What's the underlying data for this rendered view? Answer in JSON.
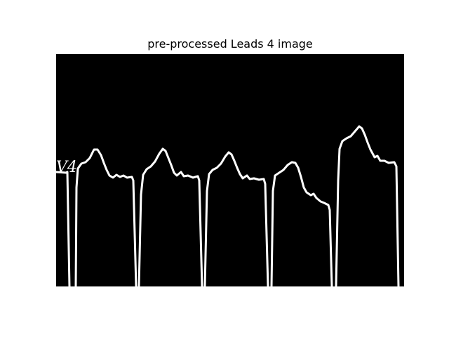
{
  "figure": {
    "title": "pre-processed Leads 4 image"
  },
  "image": {
    "description_kind": "binarized ECG lead strip",
    "background_color": "#000000",
    "trace_color": "#ffffff",
    "lead_label": "V4",
    "beat_count": 5
  }
}
